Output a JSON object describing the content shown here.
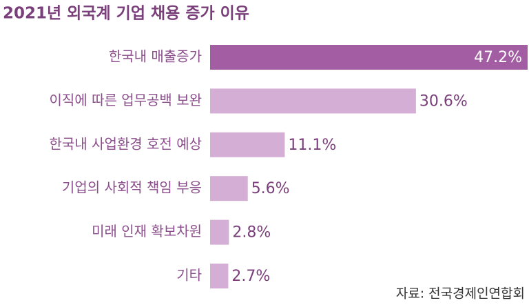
{
  "chart_data": {
    "type": "bar",
    "orientation": "horizontal",
    "title": "2021년 외국계 기업 채용 증가 이유",
    "categories": [
      "한국내 매출증가",
      "이직에 따른 업무공백 보완",
      "한국내 사업환경  호전 예상",
      "기업의 사회적 책임 부응",
      "미래 인재 확보차원",
      "기타"
    ],
    "values": [
      47.2,
      30.6,
      11.1,
      5.6,
      2.8,
      2.7
    ],
    "value_labels": [
      "47.2%",
      "30.6%",
      "11.1%",
      "5.6%",
      "2.8%",
      "2.7%"
    ],
    "colors": [
      "#a35ea3",
      "#d4aed4",
      "#d4aed4",
      "#d4aed4",
      "#d4aed4",
      "#d4aed4"
    ],
    "source": "자료: 전국경제인연합회"
  }
}
